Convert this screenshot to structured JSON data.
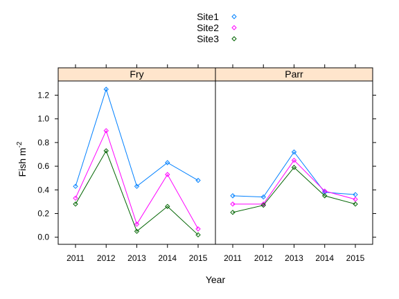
{
  "chart_data": {
    "type": "line",
    "legend": {
      "placement": "top",
      "entries": [
        {
          "name": "Site1",
          "color": "#0080ff"
        },
        {
          "name": "Site2",
          "color": "#ff00ff"
        },
        {
          "name": "Site3",
          "color": "#006400"
        }
      ]
    },
    "xlabel": "Year",
    "ylabel": "Fish m",
    "ylabel_superscript": "-2",
    "x": [
      2011,
      2012,
      2013,
      2014,
      2015
    ],
    "xticks": [
      "2011",
      "2012",
      "2013",
      "2014",
      "2015"
    ],
    "ylim": [
      -0.06,
      1.32
    ],
    "yticks": [
      "0.0",
      "0.2",
      "0.4",
      "0.6",
      "0.8",
      "1.0",
      "1.2"
    ],
    "yticks_values": [
      0.0,
      0.2,
      0.4,
      0.6,
      0.8,
      1.0,
      1.2
    ],
    "panels": [
      {
        "label": "Fry",
        "series": [
          {
            "name": "Site1",
            "color": "#0080ff",
            "values": [
              0.43,
              1.25,
              0.43,
              0.63,
              0.48
            ]
          },
          {
            "name": "Site2",
            "color": "#ff00ff",
            "values": [
              0.33,
              0.9,
              0.11,
              0.53,
              0.07
            ]
          },
          {
            "name": "Site3",
            "color": "#006400",
            "values": [
              0.28,
              0.73,
              0.05,
              0.26,
              0.02
            ]
          }
        ]
      },
      {
        "label": "Parr",
        "series": [
          {
            "name": "Site1",
            "color": "#0080ff",
            "values": [
              0.35,
              0.34,
              0.72,
              0.38,
              0.36
            ]
          },
          {
            "name": "Site2",
            "color": "#ff00ff",
            "values": [
              0.28,
              0.28,
              0.65,
              0.39,
              0.32
            ]
          },
          {
            "name": "Site3",
            "color": "#006400",
            "values": [
              0.21,
              0.27,
              0.59,
              0.35,
              0.28
            ]
          }
        ]
      }
    ],
    "strip_color": "#ffe5cc",
    "grid": false
  }
}
